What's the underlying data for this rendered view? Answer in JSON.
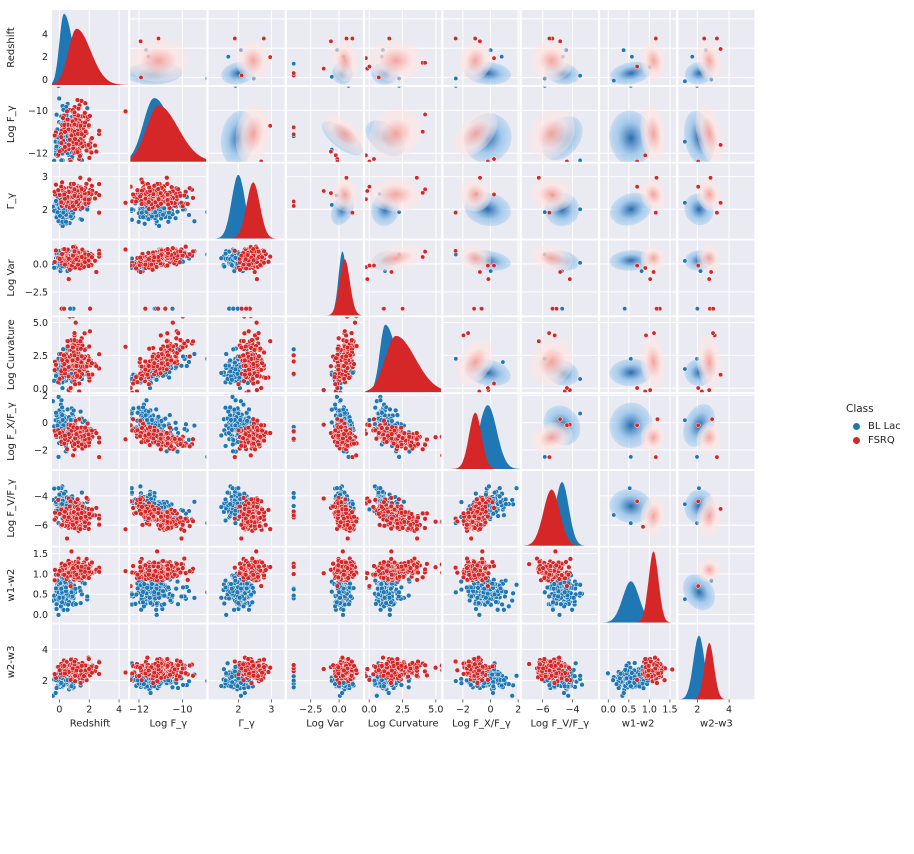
{
  "figure": {
    "legend_title": "Class",
    "classes": [
      {
        "name": "BL Lac",
        "color": "#1f77b4",
        "kde_cmap": "Blues"
      },
      {
        "name": "FSRQ",
        "color": "#d62728",
        "kde_cmap": "Reds"
      }
    ]
  },
  "chart_data": {
    "type": "pairplot",
    "layout": "9x9 grid; lower triangle: scatter, diagonal: filled KDE, upper triangle: filled bivariate KDE",
    "variables": [
      {
        "key": "Redshift",
        "label": "Redshift",
        "lim": [
          -0.5,
          4.6
        ],
        "ticks": [
          0,
          2,
          4
        ],
        "bl_lac": {
          "mean": 0.3,
          "sd": 0.3,
          "skew": 1.0
        },
        "fsrq": {
          "mean": 1.15,
          "sd": 0.55,
          "skew": 0.8
        }
      },
      {
        "key": "LogFgamma",
        "label": "Log F_γ",
        "lim": [
          -12.4,
          -8.9
        ],
        "ticks": [
          -12,
          -10
        ],
        "bl_lac": {
          "mean": -11.3,
          "sd": 0.5,
          "skew": 0.6
        },
        "fsrq": {
          "mean": -11.1,
          "sd": 0.55,
          "skew": 0.7
        }
      },
      {
        "key": "Gamma",
        "label": "Γ_γ",
        "lim": [
          1.1,
          3.4
        ],
        "ticks": [
          2,
          3
        ],
        "bl_lac": {
          "mean": 2.0,
          "sd": 0.2,
          "skew": 0
        },
        "fsrq": {
          "mean": 2.45,
          "sd": 0.2,
          "skew": 0
        }
      },
      {
        "key": "LogVar",
        "label": "Log Var",
        "lim": [
          -4.6,
          2.1
        ],
        "ticks": [
          -2.5,
          0.0
        ],
        "bl_lac": {
          "mean": 0.3,
          "sd": 0.35,
          "skew": 0
        },
        "fsrq": {
          "mean": 0.5,
          "sd": 0.45,
          "skew": 0
        }
      },
      {
        "key": "LogCurvature",
        "label": "Log Curvature",
        "lim": [
          -0.3,
          5.4
        ],
        "ticks": [
          0.0,
          2.5,
          5.0
        ],
        "bl_lac": {
          "mean": 1.2,
          "sd": 0.4,
          "skew": 1.2
        },
        "fsrq": {
          "mean": 2.0,
          "sd": 0.8,
          "skew": 0.9
        }
      },
      {
        "key": "LogFxFgamma",
        "label": "Log F_X/F_γ",
        "lim": [
          -3.4,
          2.1
        ],
        "ticks": [
          -2,
          0,
          2
        ],
        "bl_lac": {
          "mean": -0.2,
          "sd": 0.65,
          "skew": 0
        },
        "fsrq": {
          "mean": -1.1,
          "sd": 0.45,
          "skew": 0
        }
      },
      {
        "key": "LogFvFgamma",
        "label": "Log F_V/F_γ",
        "lim": [
          -7.4,
          -2.3
        ],
        "ticks": [
          -6,
          -4
        ],
        "bl_lac": {
          "mean": -4.7,
          "sd": 0.45,
          "skew": 0
        },
        "fsrq": {
          "mean": -5.4,
          "sd": 0.55,
          "skew": 0
        }
      },
      {
        "key": "w1w2",
        "label": "w1-w2",
        "lim": [
          -0.2,
          1.65
        ],
        "ticks": [
          0.0,
          0.5,
          1.0,
          1.5
        ],
        "bl_lac": {
          "mean": 0.55,
          "sd": 0.2,
          "skew": 0
        },
        "fsrq": {
          "mean": 1.1,
          "sd": 0.12,
          "skew": 0
        }
      },
      {
        "key": "w2w3",
        "label": "w2-w3",
        "lim": [
          0.8,
          5.6
        ],
        "ticks": [
          2,
          4
        ],
        "bl_lac": {
          "mean": 2.1,
          "sd": 0.35,
          "skew": 0
        },
        "fsrq": {
          "mean": 2.75,
          "sd": 0.3,
          "skew": 0
        }
      }
    ],
    "tick_labels": {
      "Redshift": [
        "0",
        "2",
        "4"
      ],
      "LogFgamma": [
        "−12",
        "−10"
      ],
      "Gamma": [
        "2",
        "3"
      ],
      "LogVar": [
        "−2.5",
        "0.0"
      ],
      "LogCurvature": [
        "0.0",
        "2.5",
        "5.0"
      ],
      "LogFxFgamma": [
        "−2",
        "0",
        "2"
      ],
      "LogFvFgamma": [
        "−6",
        "−4"
      ],
      "w1w2": [
        "0.0",
        "0.5",
        "1.0",
        "1.5"
      ],
      "w2w3": [
        "2",
        "4"
      ]
    },
    "correlations": {
      "bl_lac": {
        "Redshift|LogFgamma": 0.1,
        "Redshift|Gamma": 0.35,
        "Redshift|LogVar": 0.1,
        "Redshift|LogCurvature": 0.1,
        "Redshift|LogFxFgamma": -0.2,
        "Redshift|LogFvFgamma": -0.35,
        "Redshift|w1w2": 0.4,
        "Redshift|w2w3": 0.3,
        "LogFgamma|Gamma": -0.1,
        "LogFgamma|LogVar": 0.6,
        "LogFgamma|LogCurvature": 0.75,
        "LogFgamma|LogFxFgamma": -0.55,
        "LogFgamma|LogFvFgamma": -0.6,
        "LogFgamma|w1w2": 0.1,
        "LogFgamma|w2w3": 0.1,
        "Gamma|LogVar": -0.3,
        "Gamma|LogCurvature": -0.2,
        "Gamma|LogFxFgamma": -0.3,
        "Gamma|LogFvFgamma": -0.2,
        "Gamma|w1w2": 0.5,
        "Gamma|w2w3": 0.4,
        "LogVar|LogCurvature": 0.5,
        "LogVar|LogFxFgamma": -0.35,
        "LogVar|LogFvFgamma": -0.4,
        "LogVar|w1w2": 0.1,
        "LogVar|w2w3": 0.1,
        "LogCurvature|LogFxFgamma": -0.4,
        "LogCurvature|LogFvFgamma": -0.5,
        "LogCurvature|w1w2": 0.1,
        "LogCurvature|w2w3": 0.1,
        "LogFxFgamma|LogFvFgamma": 0.55,
        "LogFxFgamma|w1w2": -0.2,
        "LogFxFgamma|w2w3": -0.3,
        "LogFvFgamma|w1w2": -0.2,
        "LogFvFgamma|w2w3": -0.2,
        "w1w2|w2w3": 0.5
      },
      "fsrq": {
        "Redshift|LogFgamma": 0.05,
        "Redshift|Gamma": 0.2,
        "Redshift|LogVar": 0.1,
        "Redshift|LogCurvature": 0.05,
        "Redshift|LogFxFgamma": -0.25,
        "Redshift|LogFvFgamma": -0.35,
        "Redshift|w1w2": 0.1,
        "Redshift|w2w3": 0.15,
        "LogFgamma|Gamma": -0.1,
        "LogFgamma|LogVar": 0.65,
        "LogFgamma|LogCurvature": 0.8,
        "LogFgamma|LogFxFgamma": -0.6,
        "LogFgamma|LogFvFgamma": -0.6,
        "LogFgamma|w1w2": 0.05,
        "LogFgamma|w2w3": 0.1,
        "Gamma|LogVar": 0.1,
        "Gamma|LogCurvature": -0.1,
        "Gamma|LogFxFgamma": -0.1,
        "Gamma|LogFvFgamma": -0.1,
        "Gamma|w1w2": 0.3,
        "Gamma|w2w3": 0.2,
        "LogVar|LogCurvature": 0.5,
        "LogVar|LogFxFgamma": -0.4,
        "LogVar|LogFvFgamma": -0.4,
        "LogVar|w1w2": 0.05,
        "LogVar|w2w3": 0.05,
        "LogCurvature|LogFxFgamma": -0.45,
        "LogCurvature|LogFvFgamma": -0.5,
        "LogCurvature|w1w2": 0.05,
        "LogCurvature|w2w3": 0.05,
        "LogFxFgamma|LogFvFgamma": 0.5,
        "LogFxFgamma|w1w2": -0.1,
        "LogFxFgamma|w2w3": -0.2,
        "LogFvFgamma|w1w2": -0.1,
        "LogFvFgamma|w2w3": -0.1,
        "w1w2|w2w3": 0.3
      }
    },
    "log_var_floor": -4.0,
    "scatter_points_per_class": 170
  }
}
